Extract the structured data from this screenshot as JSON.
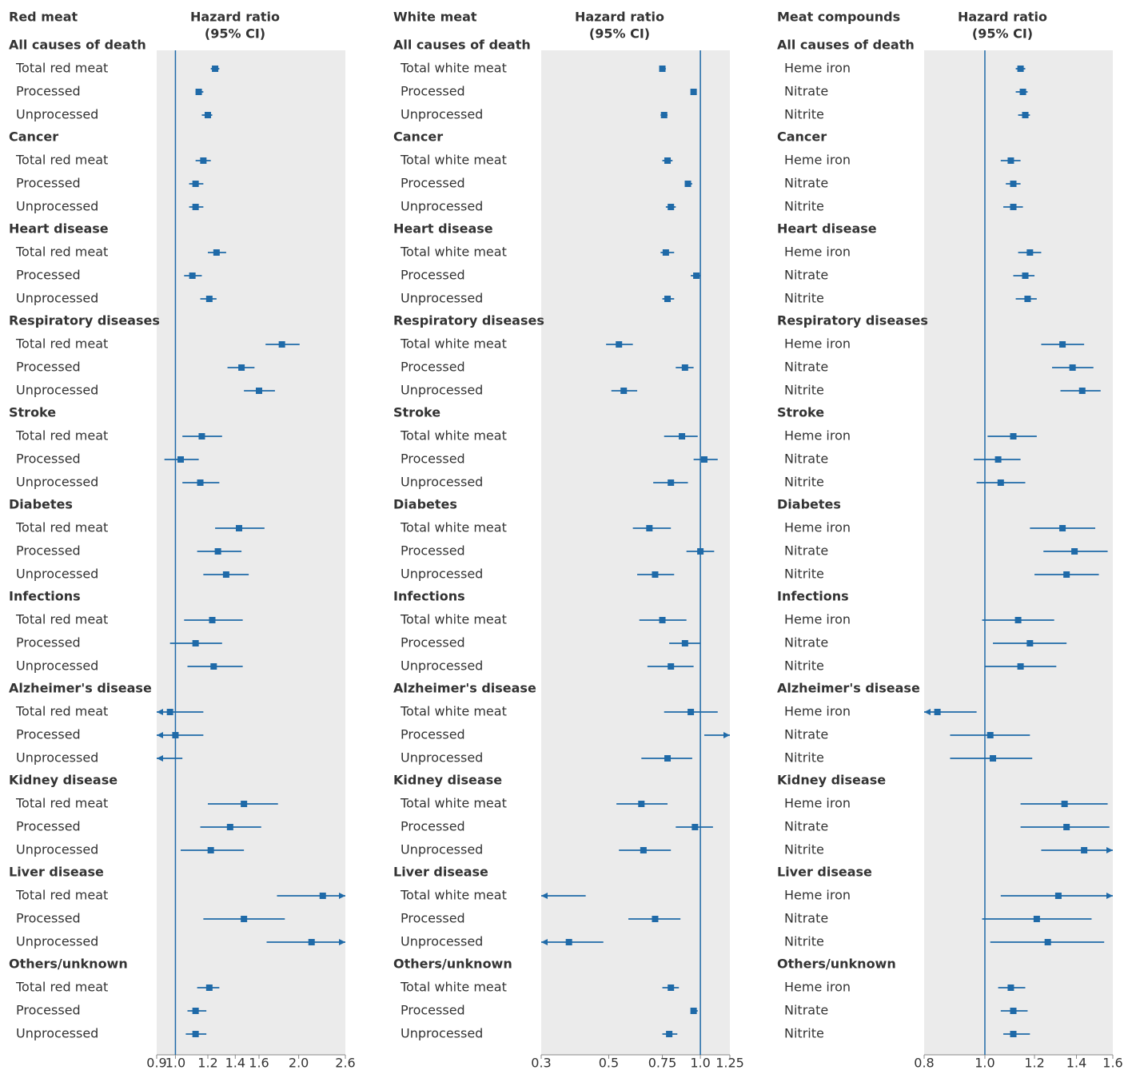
{
  "chart_data": [
    {
      "type": "forest",
      "title": "Red meat",
      "axis_title": [
        "Hazard ratio",
        "(95% CI)"
      ],
      "row_labels": [
        "Total red meat",
        "Processed",
        "Unprocessed"
      ],
      "xscale": "log",
      "xlim": [
        0.9,
        2.6
      ],
      "xticks": [
        0.9,
        {
          "value": 1,
          "label": "1.0"
        },
        1.2,
        1.4,
        1.6,
        {
          "value": 2,
          "label": "2.0"
        },
        2.6
      ],
      "reference_line": 1,
      "color": "#1f6aa8",
      "groups": [
        {
          "name": "All causes of death",
          "hr": [
            1.25,
            1.14,
            1.2
          ],
          "lo": [
            1.22,
            1.12,
            1.16
          ],
          "hi": [
            1.28,
            1.17,
            1.23
          ]
        },
        {
          "name": "Cancer",
          "hr": [
            1.17,
            1.12,
            1.12
          ],
          "lo": [
            1.12,
            1.08,
            1.08
          ],
          "hi": [
            1.22,
            1.17,
            1.17
          ]
        },
        {
          "name": "Heart disease",
          "hr": [
            1.26,
            1.1,
            1.21
          ],
          "lo": [
            1.2,
            1.05,
            1.15
          ],
          "hi": [
            1.33,
            1.16,
            1.26
          ]
        },
        {
          "name": "Respiratory diseases",
          "hr": [
            1.82,
            1.45,
            1.6
          ],
          "lo": [
            1.66,
            1.34,
            1.47
          ],
          "hi": [
            2.01,
            1.56,
            1.75
          ]
        },
        {
          "name": "Stroke",
          "hr": [
            1.16,
            1.03,
            1.15
          ],
          "lo": [
            1.04,
            0.94,
            1.04
          ],
          "hi": [
            1.3,
            1.14,
            1.28
          ]
        },
        {
          "name": "Diabetes",
          "hr": [
            1.43,
            1.27,
            1.33
          ],
          "lo": [
            1.25,
            1.13,
            1.17
          ],
          "hi": [
            1.65,
            1.45,
            1.51
          ]
        },
        {
          "name": "Infections",
          "hr": [
            1.23,
            1.12,
            1.24
          ],
          "lo": [
            1.05,
            0.97,
            1.07
          ],
          "hi": [
            1.46,
            1.3,
            1.46
          ]
        },
        {
          "name": "Alzheimer's disease",
          "hr": [
            0.97,
            1.0,
            0.86
          ],
          "lo": [
            0.82,
            0.85,
            0.72
          ],
          "hi": [
            1.17,
            1.17,
            1.04
          ]
        },
        {
          "name": "Kidney disease",
          "hr": [
            1.47,
            1.36,
            1.22
          ],
          "lo": [
            1.2,
            1.15,
            1.03
          ],
          "hi": [
            1.78,
            1.62,
            1.47
          ]
        },
        {
          "name": "Liver disease",
          "hr": [
            2.29,
            1.47,
            2.15
          ],
          "lo": [
            1.77,
            1.17,
            1.67
          ],
          "hi": [
            2.95,
            1.85,
            2.77
          ]
        },
        {
          "name": "Others/unknown",
          "hr": [
            1.21,
            1.12,
            1.12
          ],
          "lo": [
            1.13,
            1.07,
            1.06
          ],
          "hi": [
            1.28,
            1.19,
            1.19
          ]
        }
      ]
    },
    {
      "type": "forest",
      "title": "White meat",
      "axis_title": [
        "Hazard ratio",
        "(95% CI)"
      ],
      "row_labels": [
        "Total white meat",
        "Processed",
        "Unprocessed"
      ],
      "xscale": "log",
      "xlim": [
        0.3,
        1.25
      ],
      "xticks": [
        0.3,
        0.5,
        0.75,
        {
          "value": 1,
          "label": "1.0"
        },
        1.25
      ],
      "reference_line": 1,
      "color": "#1f6aa8",
      "groups": [
        {
          "name": "All causes of death",
          "hr": [
            0.75,
            0.95,
            0.76
          ],
          "lo": [
            0.74,
            0.93,
            0.74
          ],
          "hi": [
            0.77,
            0.97,
            0.78
          ]
        },
        {
          "name": "Cancer",
          "hr": [
            0.78,
            0.91,
            0.8
          ],
          "lo": [
            0.75,
            0.89,
            0.77
          ],
          "hi": [
            0.81,
            0.94,
            0.83
          ]
        },
        {
          "name": "Heart disease",
          "hr": [
            0.77,
            0.97,
            0.78
          ],
          "lo": [
            0.74,
            0.93,
            0.75
          ],
          "hi": [
            0.82,
            1.0,
            0.82
          ]
        },
        {
          "name": "Respiratory diseases",
          "hr": [
            0.54,
            0.89,
            0.56
          ],
          "lo": [
            0.49,
            0.83,
            0.51
          ],
          "hi": [
            0.6,
            0.95,
            0.62
          ]
        },
        {
          "name": "Stroke",
          "hr": [
            0.87,
            1.03,
            0.8
          ],
          "lo": [
            0.76,
            0.95,
            0.7
          ],
          "hi": [
            0.98,
            1.14,
            0.91
          ]
        },
        {
          "name": "Diabetes",
          "hr": [
            0.68,
            1.0,
            0.71
          ],
          "lo": [
            0.6,
            0.9,
            0.62
          ],
          "hi": [
            0.8,
            1.11,
            0.82
          ]
        },
        {
          "name": "Infections",
          "hr": [
            0.75,
            0.89,
            0.8
          ],
          "lo": [
            0.63,
            0.79,
            0.67
          ],
          "hi": [
            0.9,
            1.0,
            0.95
          ]
        },
        {
          "name": "Alzheimer's disease",
          "hr": [
            0.93,
            1.3,
            0.78
          ],
          "lo": [
            0.76,
            1.03,
            0.64
          ],
          "hi": [
            1.14,
            1.6,
            0.94
          ]
        },
        {
          "name": "Kidney disease",
          "hr": [
            0.64,
            0.96,
            0.65
          ],
          "lo": [
            0.53,
            0.83,
            0.54
          ],
          "hi": [
            0.78,
            1.1,
            0.8
          ]
        },
        {
          "name": "Liver disease",
          "hr": [
            0.25,
            0.71,
            0.37
          ],
          "lo": [
            0.15,
            0.58,
            0.24
          ],
          "hi": [
            0.42,
            0.86,
            0.48
          ]
        },
        {
          "name": "Others/unknown",
          "hr": [
            0.8,
            0.95,
            0.79
          ],
          "lo": [
            0.75,
            0.93,
            0.75
          ],
          "hi": [
            0.85,
            0.98,
            0.84
          ]
        }
      ]
    },
    {
      "type": "forest",
      "title": "Meat compounds",
      "axis_title": [
        "Hazard ratio",
        "(95% CI)"
      ],
      "row_labels": [
        "Heme iron",
        "Nitrate",
        "Nitrite"
      ],
      "xscale": "log",
      "xlim": [
        0.8,
        1.6
      ],
      "xticks": [
        0.8,
        {
          "value": 1,
          "label": "1.0"
        },
        1.2,
        1.4,
        1.6
      ],
      "reference_line": 1,
      "color": "#1f6aa8",
      "groups": [
        {
          "name": "All causes of death",
          "hr": [
            1.14,
            1.15,
            1.16
          ],
          "lo": [
            1.12,
            1.12,
            1.13
          ],
          "hi": [
            1.16,
            1.17,
            1.18
          ]
        },
        {
          "name": "Cancer",
          "hr": [
            1.1,
            1.11,
            1.11
          ],
          "lo": [
            1.06,
            1.08,
            1.07
          ],
          "hi": [
            1.14,
            1.14,
            1.15
          ]
        },
        {
          "name": "Heart disease",
          "hr": [
            1.18,
            1.16,
            1.17
          ],
          "lo": [
            1.13,
            1.11,
            1.12
          ],
          "hi": [
            1.23,
            1.2,
            1.21
          ]
        },
        {
          "name": "Respiratory diseases",
          "hr": [
            1.33,
            1.38,
            1.43
          ],
          "lo": [
            1.23,
            1.28,
            1.32
          ],
          "hi": [
            1.44,
            1.49,
            1.53
          ]
        },
        {
          "name": "Stroke",
          "hr": [
            1.11,
            1.05,
            1.06
          ],
          "lo": [
            1.01,
            0.96,
            0.97
          ],
          "hi": [
            1.21,
            1.14,
            1.16
          ]
        },
        {
          "name": "Diabetes",
          "hr": [
            1.33,
            1.39,
            1.35
          ],
          "lo": [
            1.18,
            1.24,
            1.2
          ],
          "hi": [
            1.5,
            1.57,
            1.52
          ]
        },
        {
          "name": "Infections",
          "hr": [
            1.13,
            1.18,
            1.14
          ],
          "lo": [
            0.99,
            1.03,
            1.0
          ],
          "hi": [
            1.29,
            1.35,
            1.3
          ]
        },
        {
          "name": "Alzheimer's disease",
          "hr": [
            0.84,
            1.02,
            1.03
          ],
          "lo": [
            0.76,
            0.88,
            0.88
          ],
          "hi": [
            0.97,
            1.18,
            1.19
          ]
        },
        {
          "name": "Kidney disease",
          "hr": [
            1.34,
            1.35,
            1.44
          ],
          "lo": [
            1.14,
            1.14,
            1.23
          ],
          "hi": [
            1.57,
            1.58,
            1.65
          ]
        },
        {
          "name": "Liver disease",
          "hr": [
            1.31,
            1.21,
            1.26
          ],
          "lo": [
            1.06,
            0.99,
            1.02
          ],
          "hi": [
            1.68,
            1.48,
            1.55
          ]
        },
        {
          "name": "Others/unknown",
          "hr": [
            1.1,
            1.11,
            1.11
          ],
          "lo": [
            1.05,
            1.06,
            1.07
          ],
          "hi": [
            1.16,
            1.17,
            1.18
          ]
        }
      ]
    }
  ]
}
